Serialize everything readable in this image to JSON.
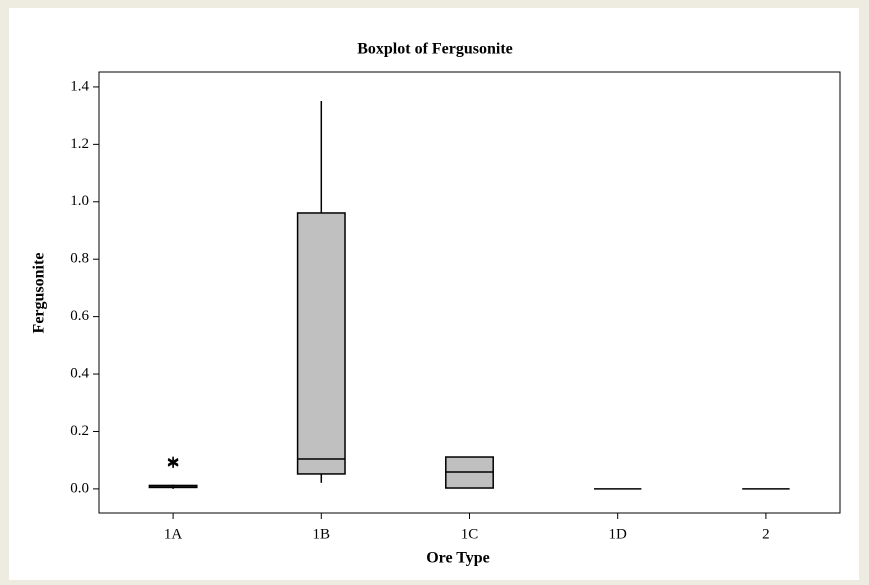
{
  "chart_data": {
    "type": "box",
    "title": "Boxplot of Fergusonite",
    "x_label": "Ore Type",
    "y_label": "Fergusonite",
    "categories": [
      "1A",
      "1B",
      "1C",
      "1D",
      "2"
    ],
    "boxes": [
      {
        "min": 0,
        "q1": 0.005,
        "median": 0.01,
        "q3": 0.012,
        "max": 0.015,
        "outliers": [
          0.095,
          0.09
        ]
      },
      {
        "min": 0.021,
        "q1": 0.052,
        "median": 0.104,
        "q3": 0.961,
        "max": 1.351,
        "outliers": []
      },
      {
        "min": 0.003,
        "q1": 0.003,
        "median": 0.059,
        "q3": 0.111,
        "max": 0.111,
        "outliers": []
      },
      {
        "min": 0,
        "q1": 0,
        "median": 0,
        "q3": 0,
        "max": 0,
        "outliers": []
      },
      {
        "min": 0,
        "q1": 0,
        "median": 0,
        "q3": 0,
        "max": 0,
        "outliers": []
      }
    ],
    "color": "#c0c0c0",
    "ylim": [
      -0.084,
      1.452
    ],
    "yticks": [
      {
        "value": 0,
        "label": "0.0"
      },
      0.2,
      0.4,
      0.6,
      0.8,
      {
        "value": 1,
        "label": "1.0"
      },
      1.2,
      1.4
    ]
  }
}
